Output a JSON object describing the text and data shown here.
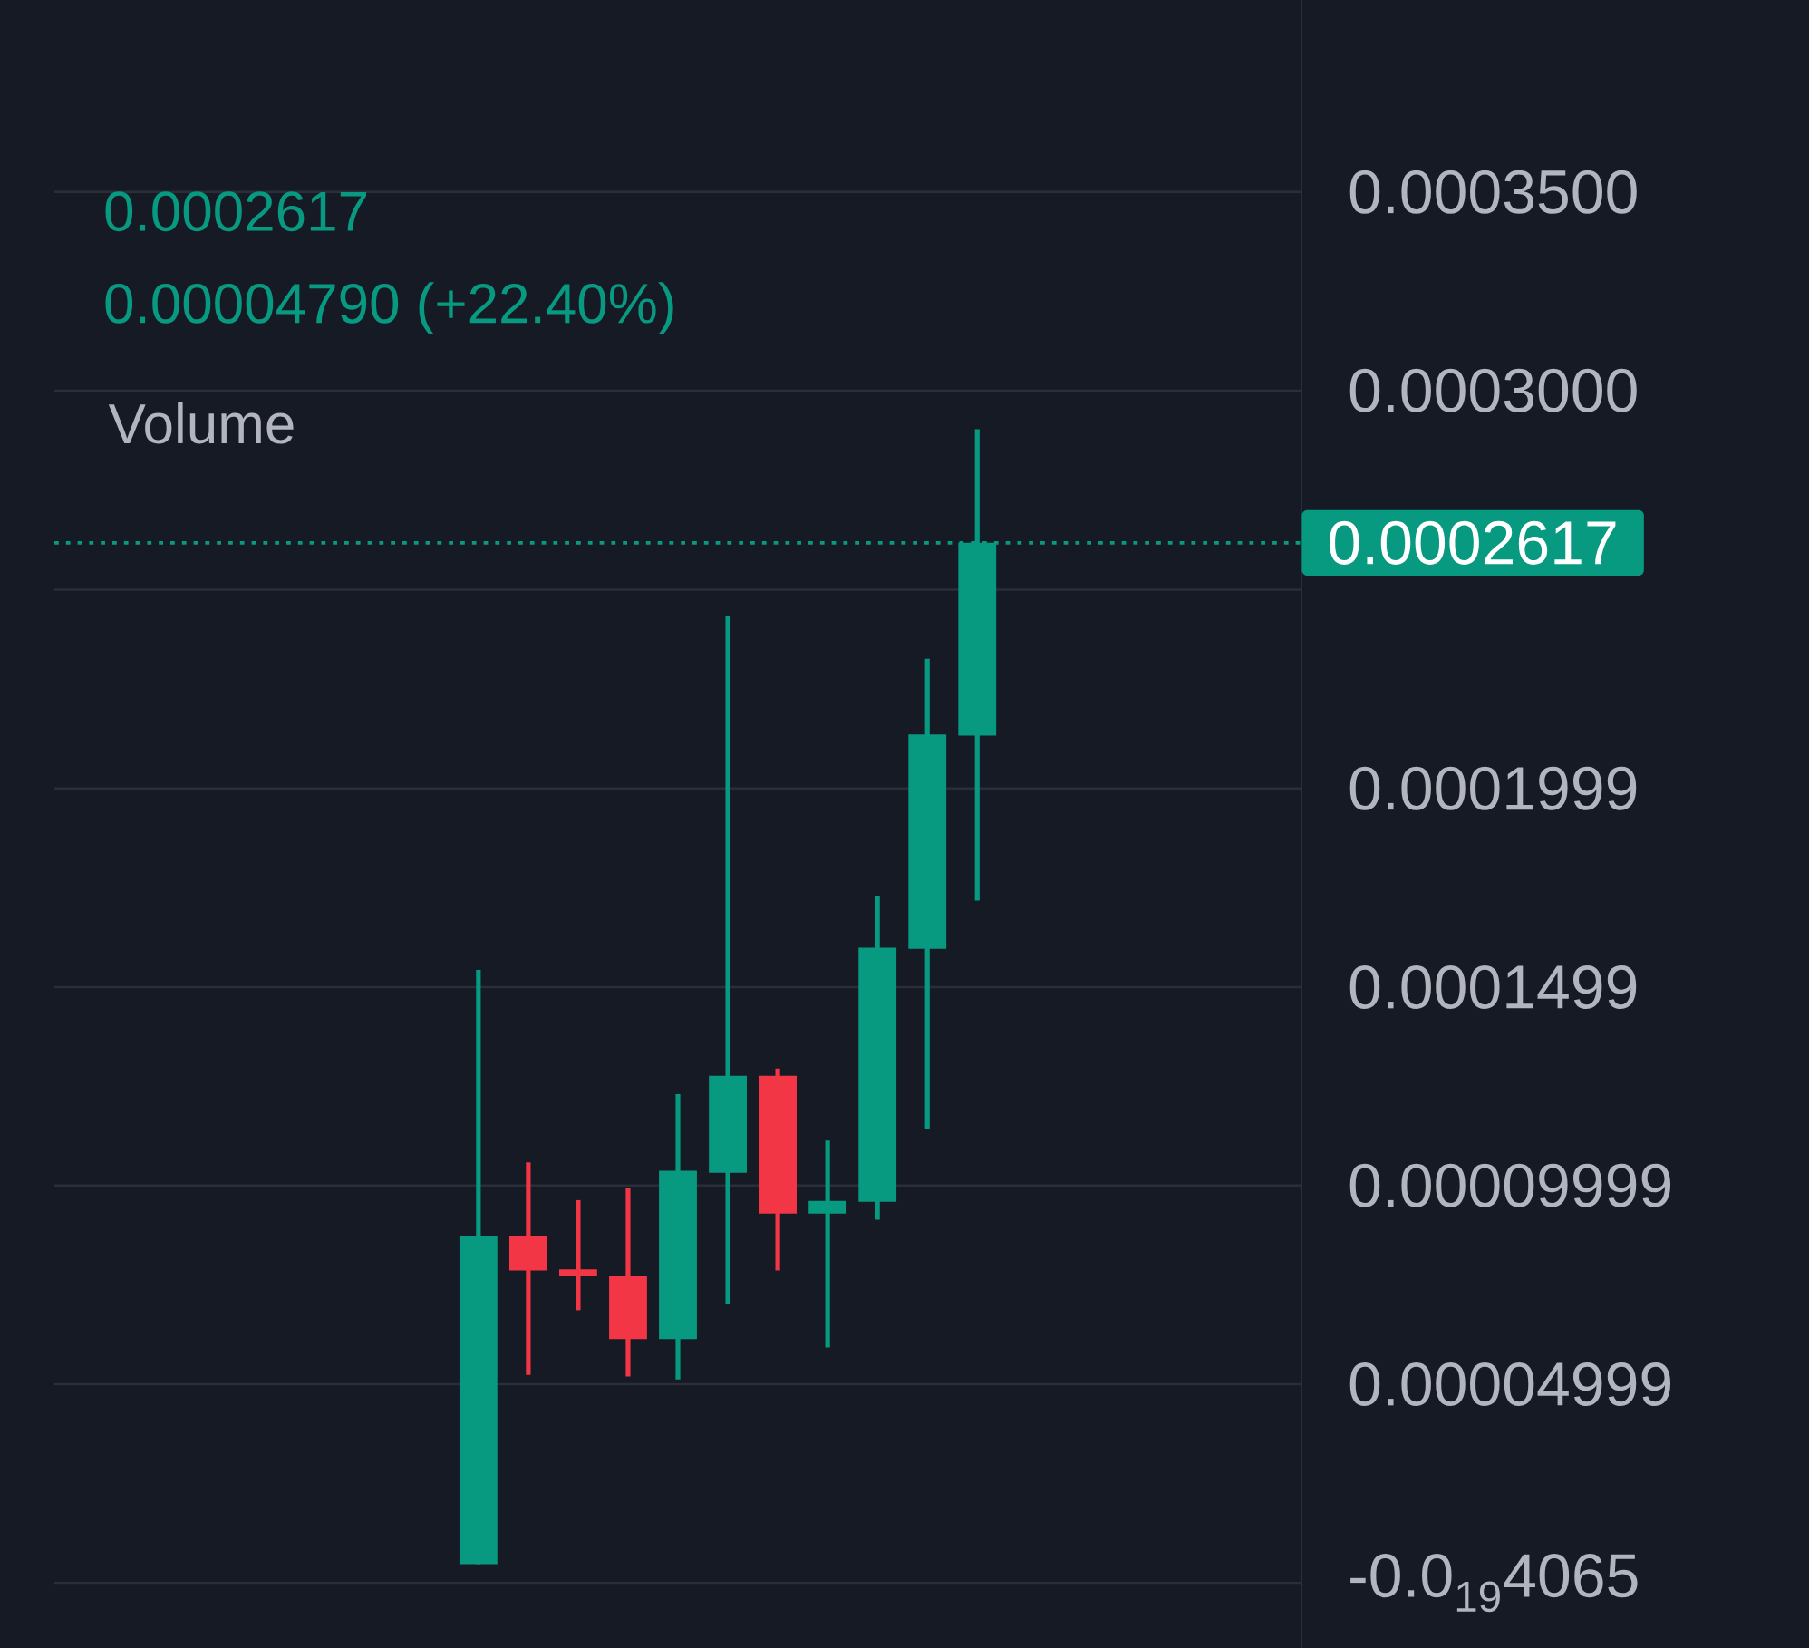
{
  "chart_data": {
    "type": "candlestick",
    "categories": [
      null,
      null,
      null,
      null,
      null,
      null,
      null,
      null,
      null,
      null,
      null,
      null,
      null,
      null,
      null,
      null,
      null,
      null,
      null,
      null,
      null,
      null,
      null,
      null,
      null
    ],
    "ohlc": [
      null,
      null,
      null,
      null,
      null,
      null,
      null,
      null,
      [
        4.7e-06,
        0.0001542,
        4.7e-06,
        8.73e-05
      ],
      [
        8.73e-05,
        0.0001058,
        5.23e-05,
        7.86e-05
      ],
      [
        7.89e-05,
        9.63e-05,
        6.86e-05,
        7.71e-05
      ],
      [
        7.71e-05,
        9.95e-05,
        5.19e-05,
        6.13e-05
      ],
      [
        6.13e-05,
        0.000123,
        5.12e-05,
        0.0001037
      ],
      [
        0.0001032,
        0.0002432,
        7.01e-05,
        0.0001276
      ],
      [
        0.0001276,
        0.0001294,
        7.86e-05,
        9.29e-05
      ],
      [
        9.29e-05,
        0.0001113,
        5.92e-05,
        9.61e-05
      ],
      [
        9.59e-05,
        0.0001729,
        9.14e-05,
        0.0001598
      ],
      [
        0.0001595,
        0.0002325,
        0.0001142,
        0.0002135
      ],
      [
        0.0002132,
        0.0002903,
        0.0001717,
        0.0002617
      ],
      null,
      null,
      null,
      null,
      null,
      null
    ],
    "colors": [
      null,
      null,
      null,
      null,
      null,
      null,
      null,
      null,
      "#089981",
      "#f23645",
      "#f23645",
      "#f23645",
      "#089981",
      "#089981",
      "#f23645",
      "#089981",
      "#089981",
      "#089981",
      "#089981",
      null,
      null,
      null,
      null,
      null,
      null
    ],
    "ylim": [
      -1.64e-05,
      0.0003983
    ],
    "yticks": [
      {
        "value": 0.00035,
        "label": "0.0003500"
      },
      {
        "value": 0.0003,
        "label": "0.0003000"
      },
      {
        "value": 0.0002499,
        "label": null
      },
      {
        "value": 0.0001999,
        "label": "0.0001999"
      },
      {
        "value": 0.0001499,
        "label": "0.0001499"
      },
      {
        "value": 9.999e-05,
        "label": "0.00009999"
      },
      {
        "value": 4.999e-05,
        "label": "0.00004999"
      },
      {
        "value": -4.065e-20,
        "label": "-0.0$_{19}$4065"
      }
    ],
    "tick_labels": "y",
    "grid": "y",
    "ref_lines": [
      {
        "axis": "y",
        "value": 0.0002617,
        "label": "0.0002617",
        "color": "#089981",
        "line_style": "dotted"
      }
    ],
    "annotations": [
      "0.0002617",
      "0.00004790 (+22.40%)",
      "Volume"
    ]
  }
}
